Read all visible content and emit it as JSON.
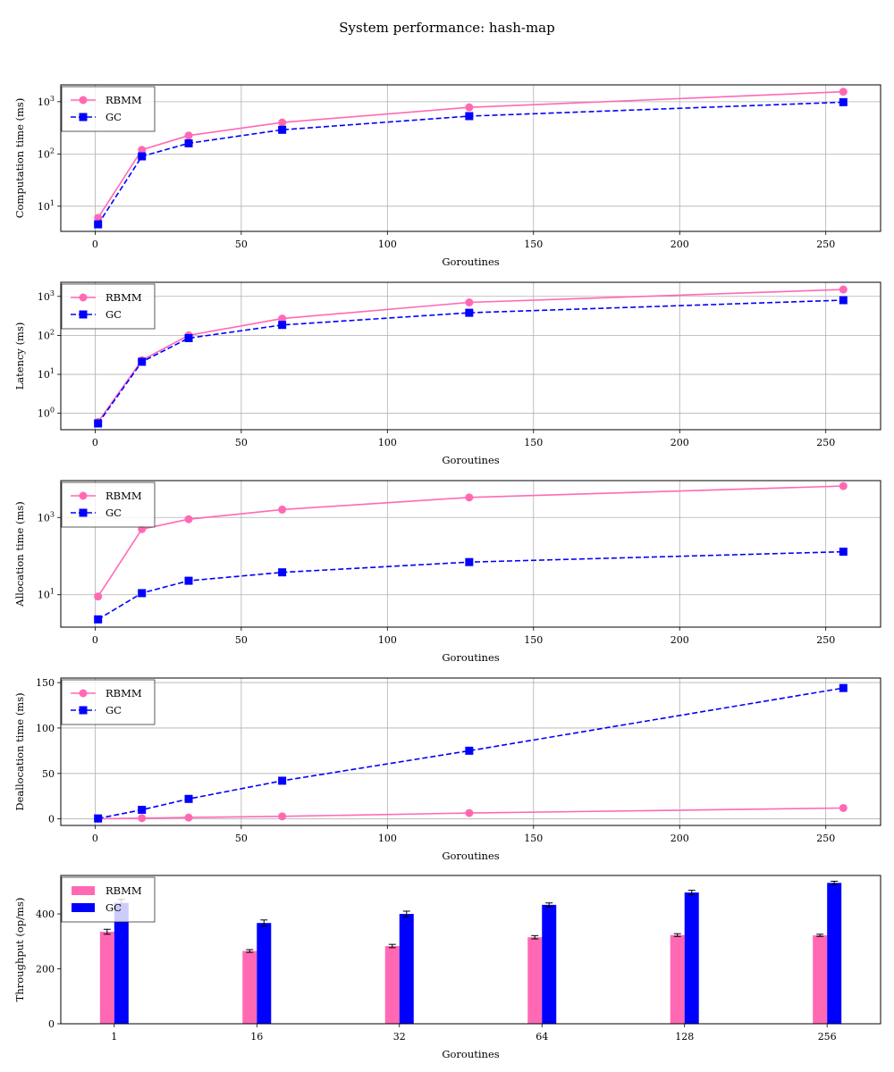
{
  "figure_title": "System performance: hash-map",
  "colors": {
    "rbmm": "#ff69b4",
    "gc": "#0000ff",
    "grid": "#b0b0b0"
  },
  "chart_data": [
    {
      "type": "line",
      "ylabel": "Computation time (ms)",
      "xlabel": "Goroutines",
      "yscale": "log",
      "ylim": [
        3.3,
        2100
      ],
      "xlim": [
        -11.75,
        268.75
      ],
      "xticks": [
        0,
        50,
        100,
        150,
        200,
        250
      ],
      "yticks": [
        {
          "value": 10,
          "base": "10",
          "exp": "1"
        },
        {
          "value": 100,
          "base": "10",
          "exp": "2"
        },
        {
          "value": 1000,
          "base": "10",
          "exp": "3"
        }
      ],
      "x": [
        1,
        16,
        32,
        64,
        128,
        256
      ],
      "grid": true,
      "legend": "upper-left",
      "series": [
        {
          "name": "RBMM",
          "style": "solid-circle",
          "values": [
            6,
            120,
            225,
            400,
            780,
            1550
          ]
        },
        {
          "name": "GC",
          "style": "dashed-square",
          "values": [
            4.5,
            90,
            160,
            290,
            530,
            980
          ]
        }
      ]
    },
    {
      "type": "line",
      "ylabel": "Latency (ms)",
      "xlabel": "Goroutines",
      "yscale": "log",
      "ylim": [
        0.38,
        2300
      ],
      "xlim": [
        -11.75,
        268.75
      ],
      "xticks": [
        0,
        50,
        100,
        150,
        200,
        250
      ],
      "yticks": [
        {
          "value": 1,
          "base": "10",
          "exp": "0"
        },
        {
          "value": 10,
          "base": "10",
          "exp": "1"
        },
        {
          "value": 100,
          "base": "10",
          "exp": "2"
        },
        {
          "value": 1000,
          "base": "10",
          "exp": "3"
        }
      ],
      "x": [
        1,
        16,
        32,
        64,
        128,
        256
      ],
      "grid": true,
      "legend": "upper-left",
      "series": [
        {
          "name": "RBMM",
          "style": "solid-circle",
          "values": [
            0.6,
            23,
            100,
            270,
            700,
            1500
          ]
        },
        {
          "name": "GC",
          "style": "dashed-square",
          "values": [
            0.55,
            21,
            85,
            185,
            380,
            800
          ]
        }
      ]
    },
    {
      "type": "line",
      "ylabel": "Allocation time (ms)",
      "xlabel": "Goroutines",
      "yscale": "log",
      "ylim": [
        1.45,
        9000
      ],
      "xlim": [
        -11.75,
        268.75
      ],
      "xticks": [
        0,
        50,
        100,
        150,
        200,
        250
      ],
      "yticks": [
        {
          "value": 10,
          "base": "10",
          "exp": "1"
        },
        {
          "value": 1000,
          "base": "10",
          "exp": "3"
        }
      ],
      "x": [
        1,
        16,
        32,
        64,
        128,
        256
      ],
      "grid": true,
      "legend": "upper-left",
      "series": [
        {
          "name": "RBMM",
          "style": "solid-circle",
          "values": [
            9,
            500,
            900,
            1600,
            3300,
            6500
          ]
        },
        {
          "name": "GC",
          "style": "dashed-square",
          "values": [
            2.3,
            11,
            23,
            38,
            70,
            130
          ]
        }
      ]
    },
    {
      "type": "line",
      "ylabel": "Deallocation time (ms)",
      "xlabel": "Goroutines",
      "yscale": "linear",
      "ylim": [
        -7.2,
        155
      ],
      "xlim": [
        -11.75,
        268.75
      ],
      "xticks": [
        0,
        50,
        100,
        150,
        200,
        250
      ],
      "yticks": [
        {
          "value": 0,
          "label": "0"
        },
        {
          "value": 50,
          "label": "50"
        },
        {
          "value": 100,
          "label": "100"
        },
        {
          "value": 150,
          "label": "150"
        }
      ],
      "x": [
        1,
        16,
        32,
        64,
        128,
        256
      ],
      "grid": true,
      "legend": "upper-left",
      "series": [
        {
          "name": "RBMM",
          "style": "solid-circle",
          "values": [
            0.2,
            0.8,
            1.5,
            2.8,
            6.5,
            12
          ]
        },
        {
          "name": "GC",
          "style": "dashed-square",
          "values": [
            0.5,
            10,
            22,
            42,
            75,
            144
          ]
        }
      ]
    },
    {
      "type": "bar",
      "ylabel": "Throughput (op/ms)",
      "xlabel": "Goroutines",
      "yscale": "linear",
      "ylim": [
        0,
        540
      ],
      "categories": [
        "1",
        "16",
        "32",
        "64",
        "128",
        "256"
      ],
      "yticks": [
        {
          "value": 0,
          "label": "0"
        },
        {
          "value": 200,
          "label": "200"
        },
        {
          "value": 400,
          "label": "400"
        }
      ],
      "grid": false,
      "legend": "upper-left",
      "series": [
        {
          "name": "RBMM",
          "values": [
            335,
            265,
            283,
            315,
            323,
            322
          ],
          "errors": [
            9,
            5,
            6,
            6,
            5,
            4
          ]
        },
        {
          "name": "GC",
          "values": [
            440,
            367,
            400,
            433,
            478,
            513
          ],
          "errors": [
            13,
            11,
            10,
            7,
            8,
            6
          ]
        }
      ]
    }
  ]
}
